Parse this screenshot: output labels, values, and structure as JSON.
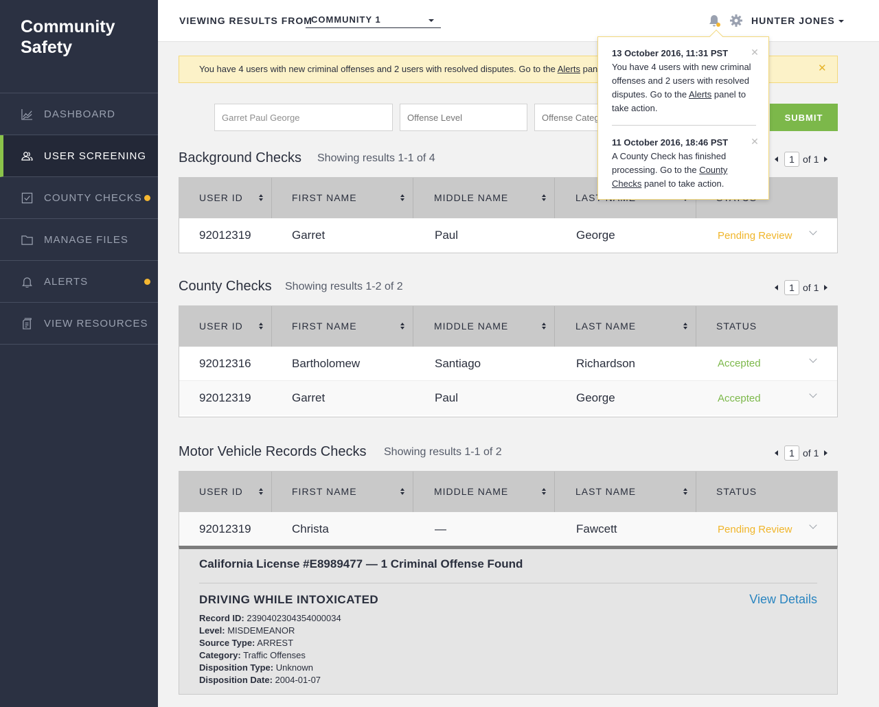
{
  "brand": {
    "line1": "Community",
    "line2": "Safety"
  },
  "sidebar": {
    "items": [
      {
        "label": "DASHBOARD",
        "icon": "chart-icon",
        "active": false,
        "dot": false
      },
      {
        "label": "USER SCREENING",
        "icon": "users-icon",
        "active": true,
        "dot": false
      },
      {
        "label": "COUNTY CHECKS",
        "icon": "checkbox-icon",
        "active": false,
        "dot": true
      },
      {
        "label": "MANAGE FILES",
        "icon": "folder-icon",
        "active": false,
        "dot": false
      },
      {
        "label": "ALERTS",
        "icon": "bell-icon",
        "active": false,
        "dot": true
      },
      {
        "label": "VIEW RESOURCES",
        "icon": "document-icon",
        "active": false,
        "dot": false
      }
    ],
    "dot_color": "#f5b731",
    "active_accent": "#8bc34a"
  },
  "header": {
    "viewing_label": "VIEWING RESULTS FROM",
    "community": "COMMUNITY 1",
    "user": "HUNTER JONES"
  },
  "banner": {
    "text_before": "You have 4 users with new criminal offenses and 2 users with resolved disputes. Go to the ",
    "link": "Alerts",
    "text_after": " panel to take action."
  },
  "search": {
    "name_value": "Garret Paul George",
    "offense_level_placeholder": "Offense Level",
    "offense_category_placeholder": "Offense Category",
    "submit": "SUBMIT"
  },
  "columns": {
    "user_id": "USER ID",
    "first": "FIRST NAME",
    "middle": "MIDDLE NAME",
    "last": "LAST NAME",
    "status": "STATUS"
  },
  "background": {
    "title": "Background Checks",
    "subtitle": "Showing results 1-1 of 4",
    "page": "1",
    "of": "of 1",
    "rows": [
      {
        "id": "92012319",
        "first": "Garret",
        "middle": "Paul",
        "last": "George",
        "status": "Pending Review"
      }
    ]
  },
  "county": {
    "title": "County Checks",
    "subtitle": "Showing results 1-2 of 2",
    "page": "1",
    "of": "of 1",
    "rows": [
      {
        "id": "92012316",
        "first": "Bartholomew",
        "middle": "Santiago",
        "last": "Richardson",
        "status": "Accepted"
      },
      {
        "id": "92012319",
        "first": "Garret",
        "middle": "Paul",
        "last": "George",
        "status": "Accepted"
      }
    ]
  },
  "mvr": {
    "title": "Motor Vehicle Records Checks",
    "subtitle": "Showing results 1-1 of 2",
    "page": "1",
    "of": "of 1",
    "rows": [
      {
        "id": "92012319",
        "first": "Christa",
        "middle": "—",
        "last": "Fawcett",
        "status": "Pending Review"
      }
    ],
    "detail": {
      "title": "California License #E8989477 — 1 Criminal Offense Found",
      "offense": "DRIVING WHILE INTOXICATED",
      "view_details": "View Details",
      "fields": [
        {
          "label": "Record ID:",
          "value": "2390402304354000034"
        },
        {
          "label": "Level:",
          "value": "MISDEMEANOR"
        },
        {
          "label": "Source Type:",
          "value": "ARREST"
        },
        {
          "label": "Category:",
          "value": "Traffic Offenses"
        },
        {
          "label": "Disposition Type:",
          "value": "Unknown"
        },
        {
          "label": "Disposition Date:",
          "value": "2004-01-07"
        }
      ]
    }
  },
  "notifications": [
    {
      "timestamp": "13 October 2016, 11:31 PST",
      "text_before": "You have 4 users with new criminal offenses and 2 users with resolved disputes. Go to the ",
      "link": "Alerts",
      "text_after": " panel to take action."
    },
    {
      "timestamp": "11 October 2016, 18:46 PST",
      "text_before": "A County Check has finished processing. Go to the ",
      "link": "County Checks",
      "text_after": " panel to take action."
    }
  ],
  "colors": {
    "pending": "#f0b52a",
    "accepted": "#7cb84a",
    "submit": "#7cb84a",
    "link": "#2a85c0"
  }
}
